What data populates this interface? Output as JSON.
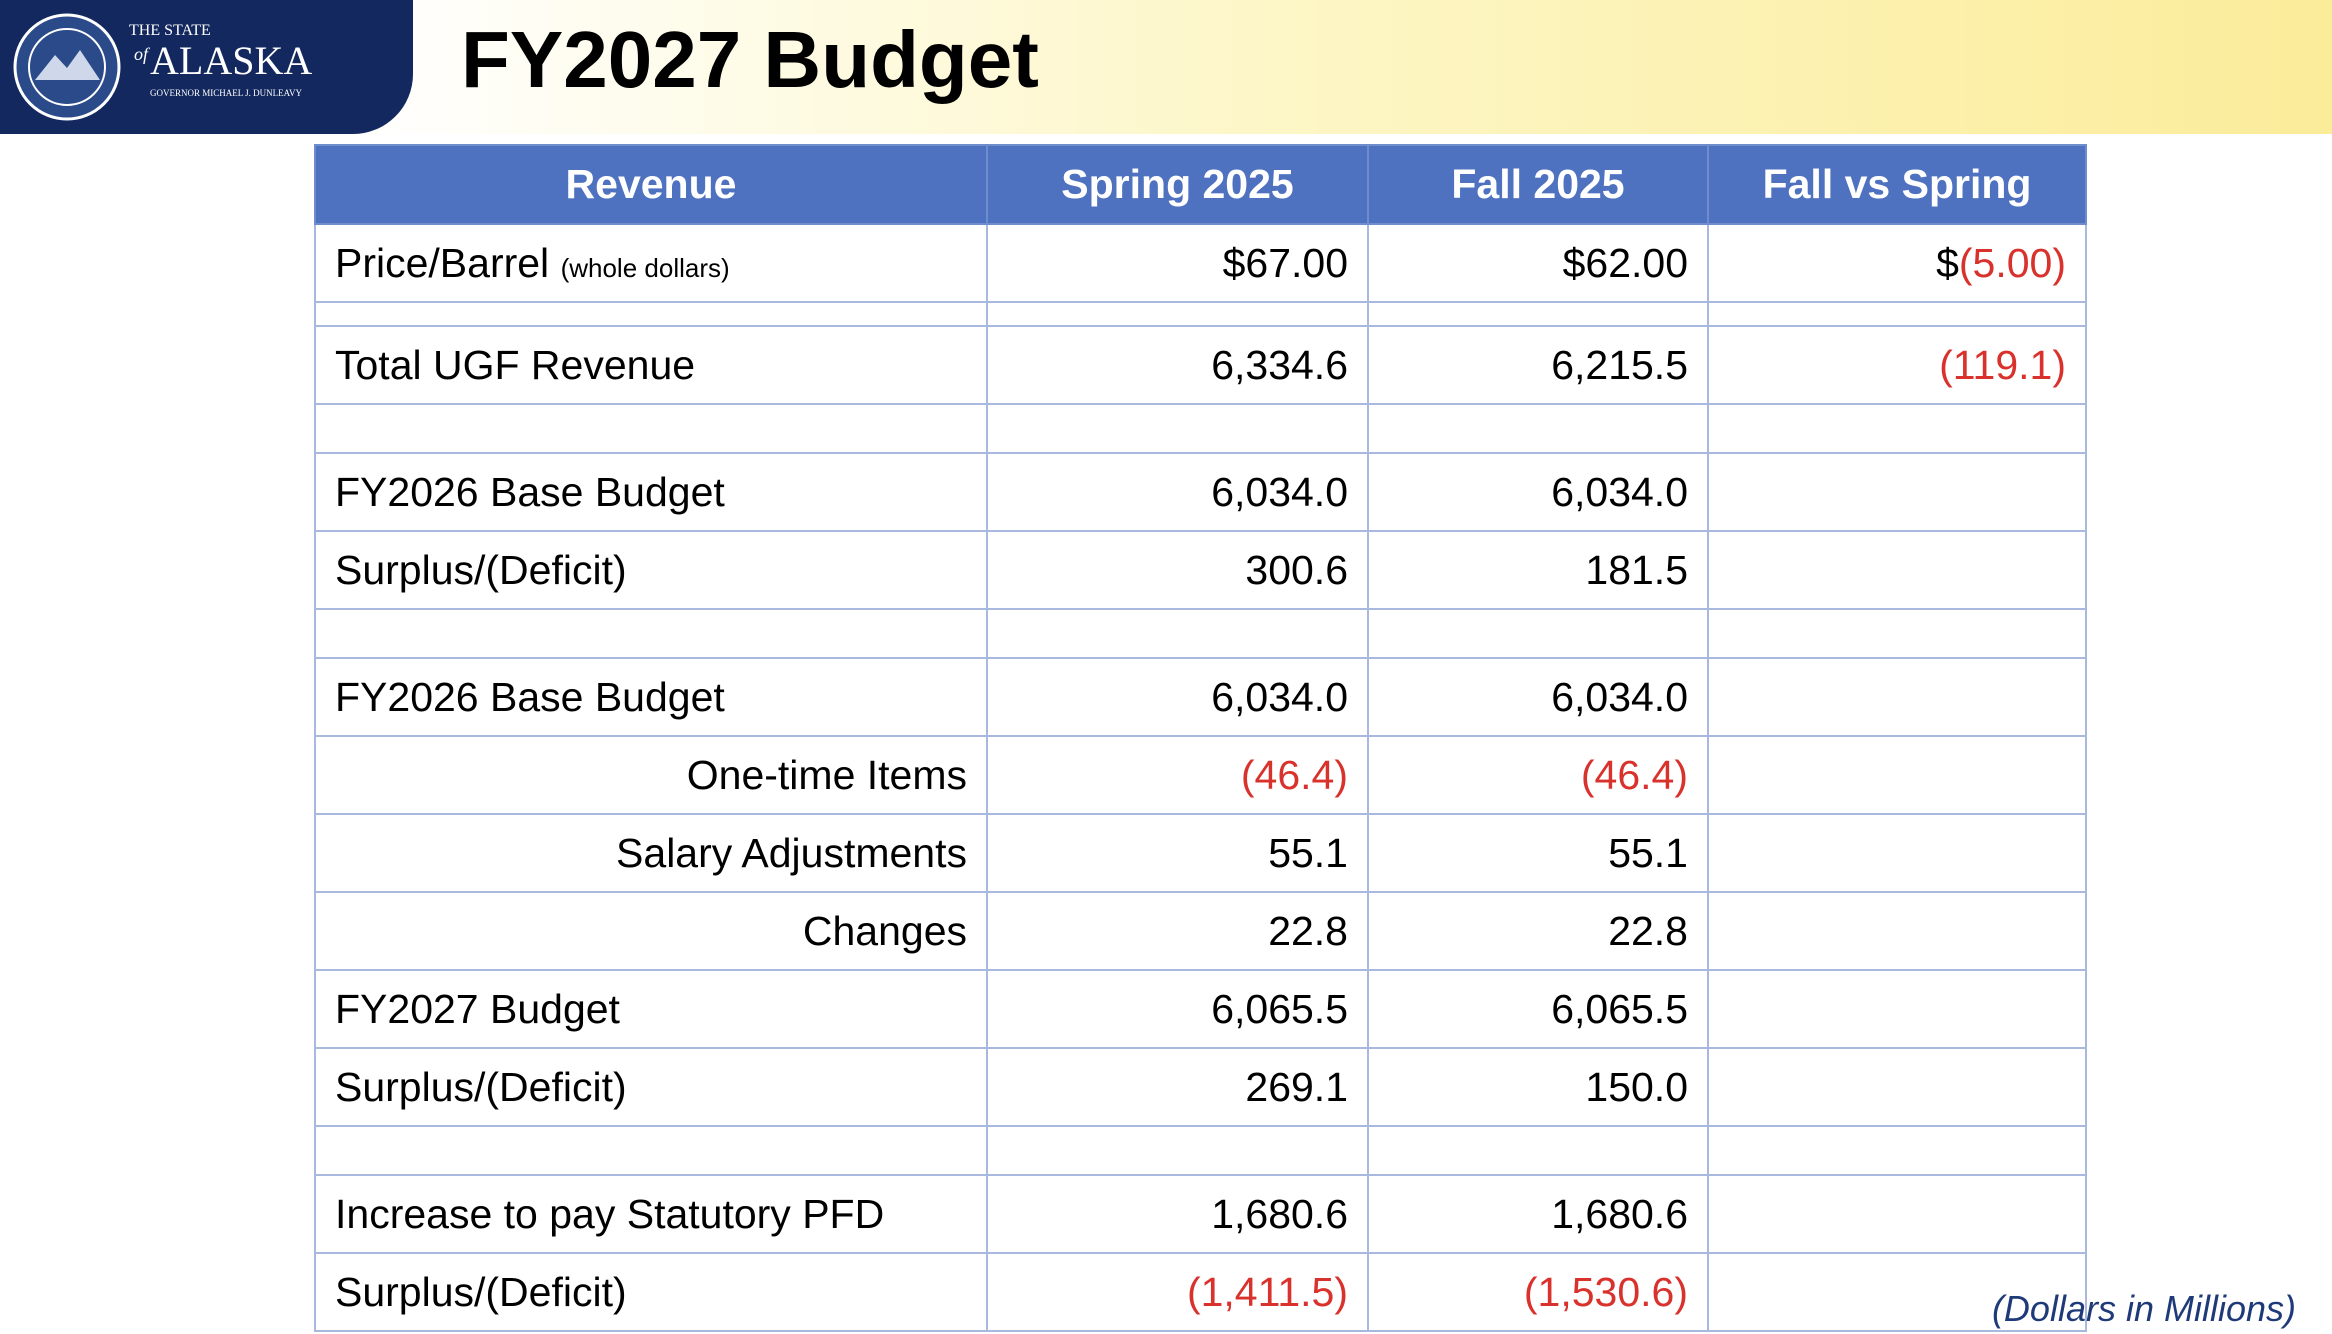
{
  "header": {
    "logo": {
      "line1": "THE STATE",
      "of": "of",
      "state": "ALASKA",
      "governor": "GOVERNOR MICHAEL J. DUNLEAVY"
    },
    "title": "FY2027 Budget"
  },
  "table": {
    "columns": [
      "Revenue",
      "Spring 2025",
      "Fall 2025",
      "Fall vs Spring"
    ],
    "rows": [
      [
        [
          "Price/Barrel",
          "(whole dollars)"
        ],
        "$67.00",
        "$62.00",
        [
          "$",
          "(5.00)"
        ]
      ],
      [
        "Total UGF Revenue",
        "6,334.6",
        "6,215.5",
        "(119.1)"
      ],
      [
        "FY2026 Base Budget",
        "6,034.0",
        "6,034.0"
      ],
      [
        "Surplus/(Deficit)",
        "300.6",
        "181.5"
      ],
      [
        "FY2026 Base Budget",
        "6,034.0",
        "6,034.0"
      ],
      [
        "One-time Items",
        "(46.4)",
        "(46.4)"
      ],
      [
        "Salary Adjustments",
        "55.1",
        "55.1"
      ],
      [
        "Changes",
        "22.8",
        "22.8"
      ],
      [
        "FY2027 Budget",
        "6,065.5",
        "6,065.5"
      ],
      [
        "Surplus/(Deficit)",
        "269.1",
        "150.0"
      ],
      [
        "Increase to pay Statutory PFD",
        "1,680.6",
        "1,680.6"
      ],
      [
        "Surplus/(Deficit)",
        "(1,411.5)",
        "(1,530.6)"
      ]
    ]
  },
  "footnote": "(Dollars in Millions)"
}
